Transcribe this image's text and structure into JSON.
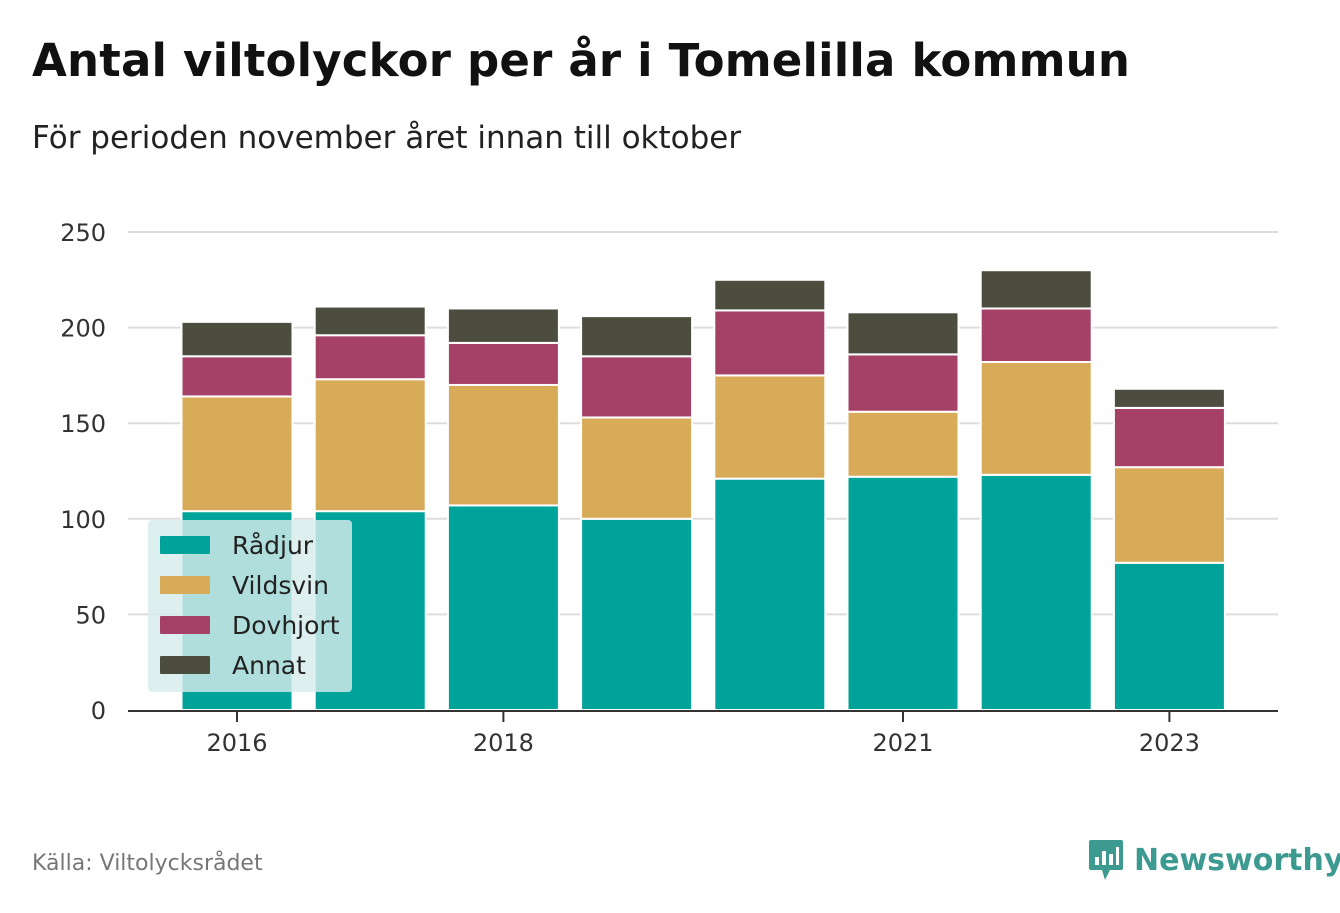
{
  "header": {
    "title": "Antal viltolyckor per år i Tomelilla kommun",
    "subtitle": "För perioden november året innan till oktober"
  },
  "footer": {
    "source": "Källa: Viltolycksrådet",
    "brand": "Newsworthy"
  },
  "chart_data": {
    "type": "bar",
    "stacked": true,
    "categories": [
      "2016",
      "2017",
      "2018",
      "2019",
      "2020",
      "2021",
      "2022",
      "2023"
    ],
    "x_tick_labels": [
      "2016",
      "2018",
      "2021",
      "2023"
    ],
    "series": [
      {
        "name": "Rådjur",
        "color": "#00a39a",
        "values": [
          104,
          104,
          107,
          100,
          121,
          122,
          123,
          77
        ]
      },
      {
        "name": "Vildsvin",
        "color": "#d8ab58",
        "values": [
          60,
          69,
          63,
          53,
          54,
          34,
          59,
          50
        ]
      },
      {
        "name": "Dovhjort",
        "color": "#a54066",
        "values": [
          21,
          23,
          22,
          32,
          34,
          30,
          28,
          31
        ]
      },
      {
        "name": "Annat",
        "color": "#4c4d3e",
        "values": [
          18,
          15,
          18,
          21,
          16,
          22,
          20,
          10
        ]
      }
    ],
    "ylim": [
      0,
      250
    ],
    "yticks": [
      0,
      50,
      100,
      150,
      200,
      250
    ],
    "xlabel": "",
    "ylabel": "",
    "grid": true,
    "legend_position": "bottom-left"
  }
}
